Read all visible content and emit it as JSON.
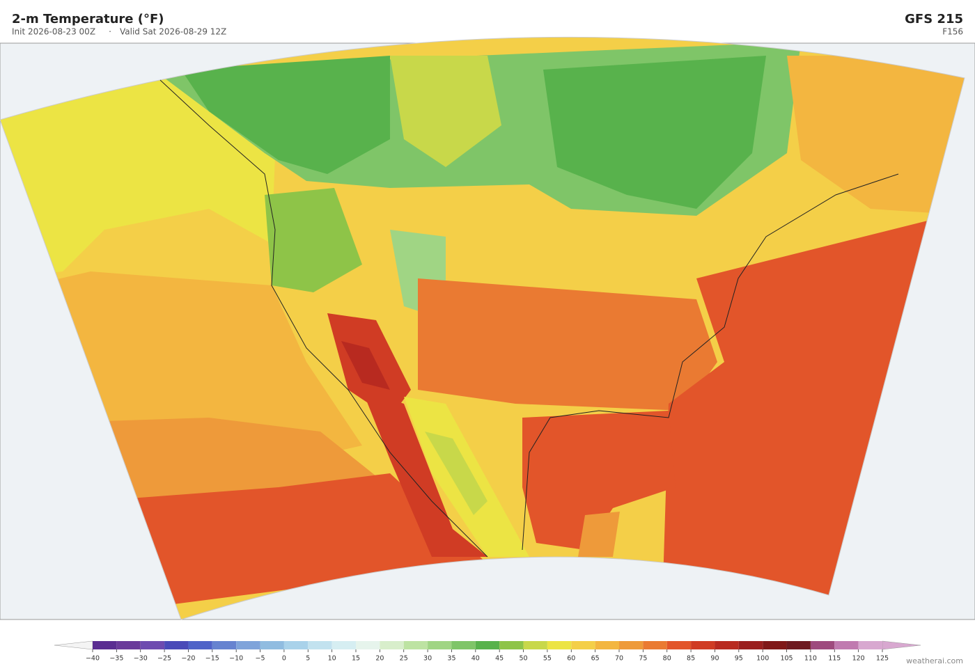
{
  "header": {
    "title": "2-m Temperature  (°F)",
    "init": "Init 2026-08-23 00Z",
    "separator": "·",
    "valid": "Valid Sat 2026-08-29 12Z",
    "model": "GFS  215",
    "forecast_hour": "F156"
  },
  "colorbar": {
    "lim": [
      -40,
      125
    ],
    "ticks": [
      {
        "value": -40,
        "label": "−40"
      },
      {
        "value": -35,
        "label": "−35"
      },
      {
        "value": -30,
        "label": "−30"
      },
      {
        "value": -25,
        "label": "−25"
      },
      {
        "value": -20,
        "label": "−20"
      },
      {
        "value": -15,
        "label": "−15"
      },
      {
        "value": -10,
        "label": "−10"
      },
      {
        "value": -5,
        "label": "−5"
      },
      0,
      5,
      10,
      15,
      20,
      25,
      30,
      35,
      40,
      45,
      50,
      55,
      60,
      65,
      70,
      75,
      80,
      85,
      90,
      95,
      100,
      105,
      110,
      115,
      120,
      125
    ],
    "colors": [
      "#5a2d91",
      "#6a3a9a",
      "#6e4bb0",
      "#4a4ab8",
      "#4f63c8",
      "#6683d0",
      "#7fa3da",
      "#90bce0",
      "#a9d2ea",
      "#c2e2ef",
      "#d6eef2",
      "#e6f4ec",
      "#d8eecb",
      "#bde3a2",
      "#a0d584",
      "#7fc568",
      "#58b24c",
      "#8ec448",
      "#c8d84a",
      "#ece444",
      "#f4cf48",
      "#f3b640",
      "#ee9a3a",
      "#ea7a32",
      "#e2552a",
      "#d03c24",
      "#b82a20",
      "#9a1f1e",
      "#801818",
      "#6e1a20",
      "#9e4a7e",
      "#c07ab0",
      "#d8a8d0"
    ],
    "under_color": "#f4f4f4",
    "over_color": "#d8a8d0"
  },
  "footer": {
    "credit": "weatherai.com"
  }
}
